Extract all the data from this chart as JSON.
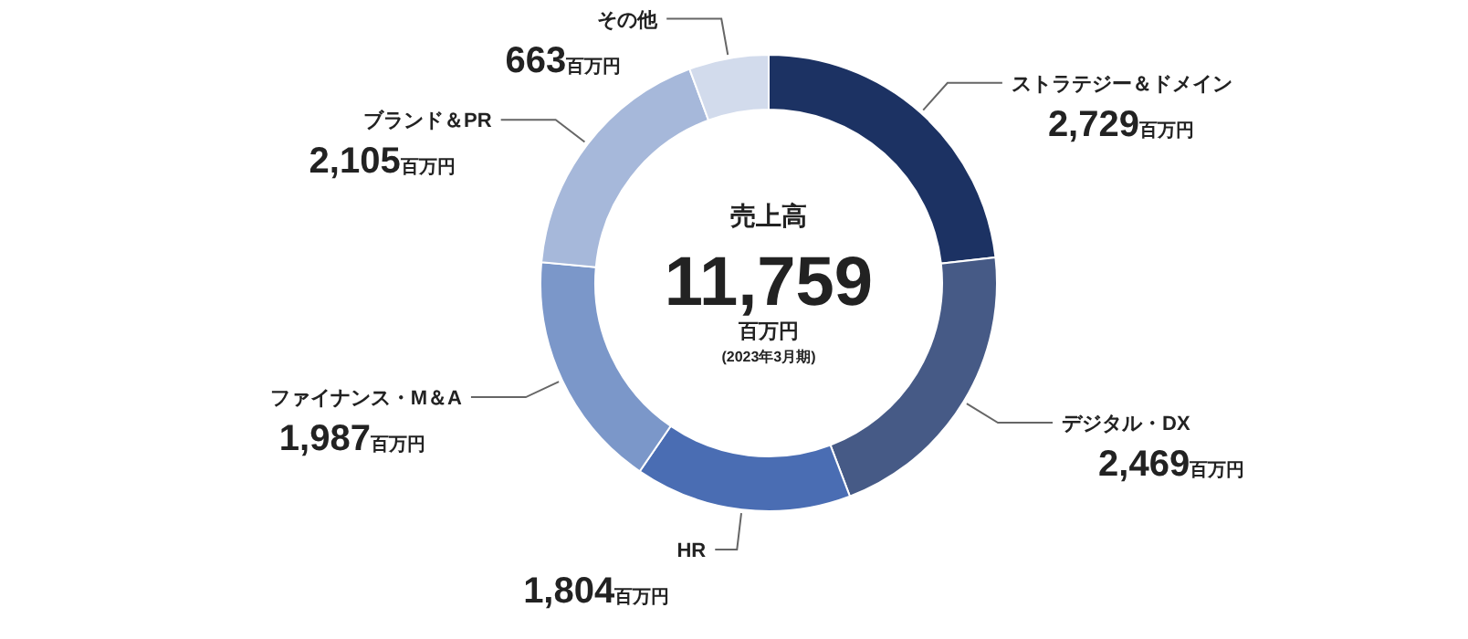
{
  "chart_data": {
    "type": "donut",
    "categories": [
      "ストラテジー＆ドメイン",
      "デジタル・DX",
      "HR",
      "ファイナンス・M＆A",
      "ブランド＆PR",
      "その他"
    ],
    "values": [
      2729,
      2469,
      1804,
      1987,
      2105,
      663
    ],
    "colors": [
      "#1c3263",
      "#465a86",
      "#4a6db3",
      "#7b97c9",
      "#a6b8da",
      "#d2dbec"
    ],
    "value_labels": [
      "2,729百万円",
      "2,469百万円",
      "1,804百万円",
      "1,987百万円",
      "2,105百万円",
      "663百万円"
    ],
    "annotations": [
      "売上高",
      "11,759",
      "百万円",
      "(2023年3月期)"
    ]
  }
}
